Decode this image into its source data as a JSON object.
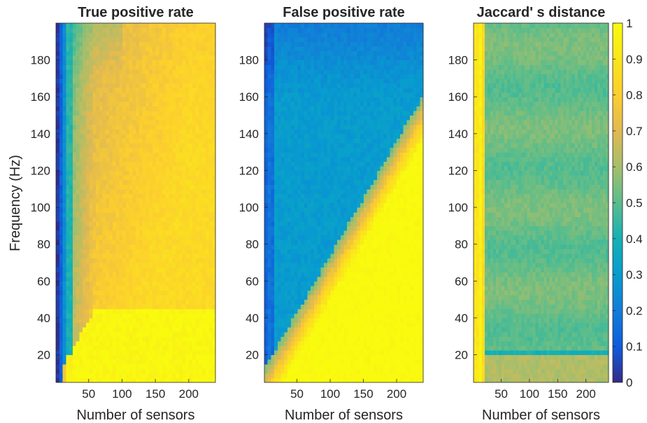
{
  "figure": {
    "colors": {
      "background": "#ffffff",
      "text": "#262626",
      "axis": "#262626"
    },
    "colormap": "parula"
  },
  "ylabel": "Frequency (Hz)",
  "chart_data": [
    {
      "type": "heatmap",
      "title": "True positive rate",
      "xlabel": "Number of sensors",
      "ylabel": "Frequency (Hz)",
      "xlim": [
        1,
        240
      ],
      "ylim": [
        5,
        200
      ],
      "xticks": [
        50,
        100,
        150,
        200
      ],
      "yticks": [
        20,
        40,
        60,
        80,
        100,
        120,
        140,
        160,
        180
      ],
      "color_range": [
        0,
        1
      ],
      "z_description": "values near 0 for few sensors, ~0.4-0.5 near 10-20 sensors, ~0.7-0.8 for many sensors at high frequency, ~1 below ~45 Hz with >30 sensors"
    },
    {
      "type": "heatmap",
      "title": "False positive rate",
      "xlabel": "Number of sensors",
      "xlim": [
        1,
        240
      ],
      "ylim": [
        5,
        200
      ],
      "xticks": [
        50,
        100,
        150,
        200
      ],
      "yticks": [
        20,
        40,
        60,
        80,
        100,
        120,
        140,
        160,
        180
      ],
      "color_range": [
        0,
        1
      ],
      "z_description": "~0.2-0.4 at high frequency, ~1 at low frequency with many sensors; boundary rises with sensor count"
    },
    {
      "type": "heatmap",
      "title": "Jaccard' s distance",
      "xlabel": "Number of sensors",
      "xlim": [
        1,
        240
      ],
      "ylim": [
        5,
        200
      ],
      "xticks": [
        50,
        100,
        150,
        200
      ],
      "yticks": [
        20,
        40,
        60,
        80,
        100,
        120,
        140,
        160,
        180
      ],
      "color_range": [
        0,
        1
      ],
      "z_description": "~0.9-1 for fewer than ~20 sensors, ~0.5-0.55 elsewhere",
      "colorbar": {
        "ticks": [
          0,
          0.1,
          0.2,
          0.3,
          0.4,
          0.5,
          0.6,
          0.7,
          0.8,
          0.9,
          1
        ],
        "labels": [
          "0",
          "0.1",
          "0.2",
          "0.3",
          "0.4",
          "0.5",
          "0.6",
          "0.7",
          "0.8",
          "0.9",
          "1"
        ]
      }
    }
  ]
}
